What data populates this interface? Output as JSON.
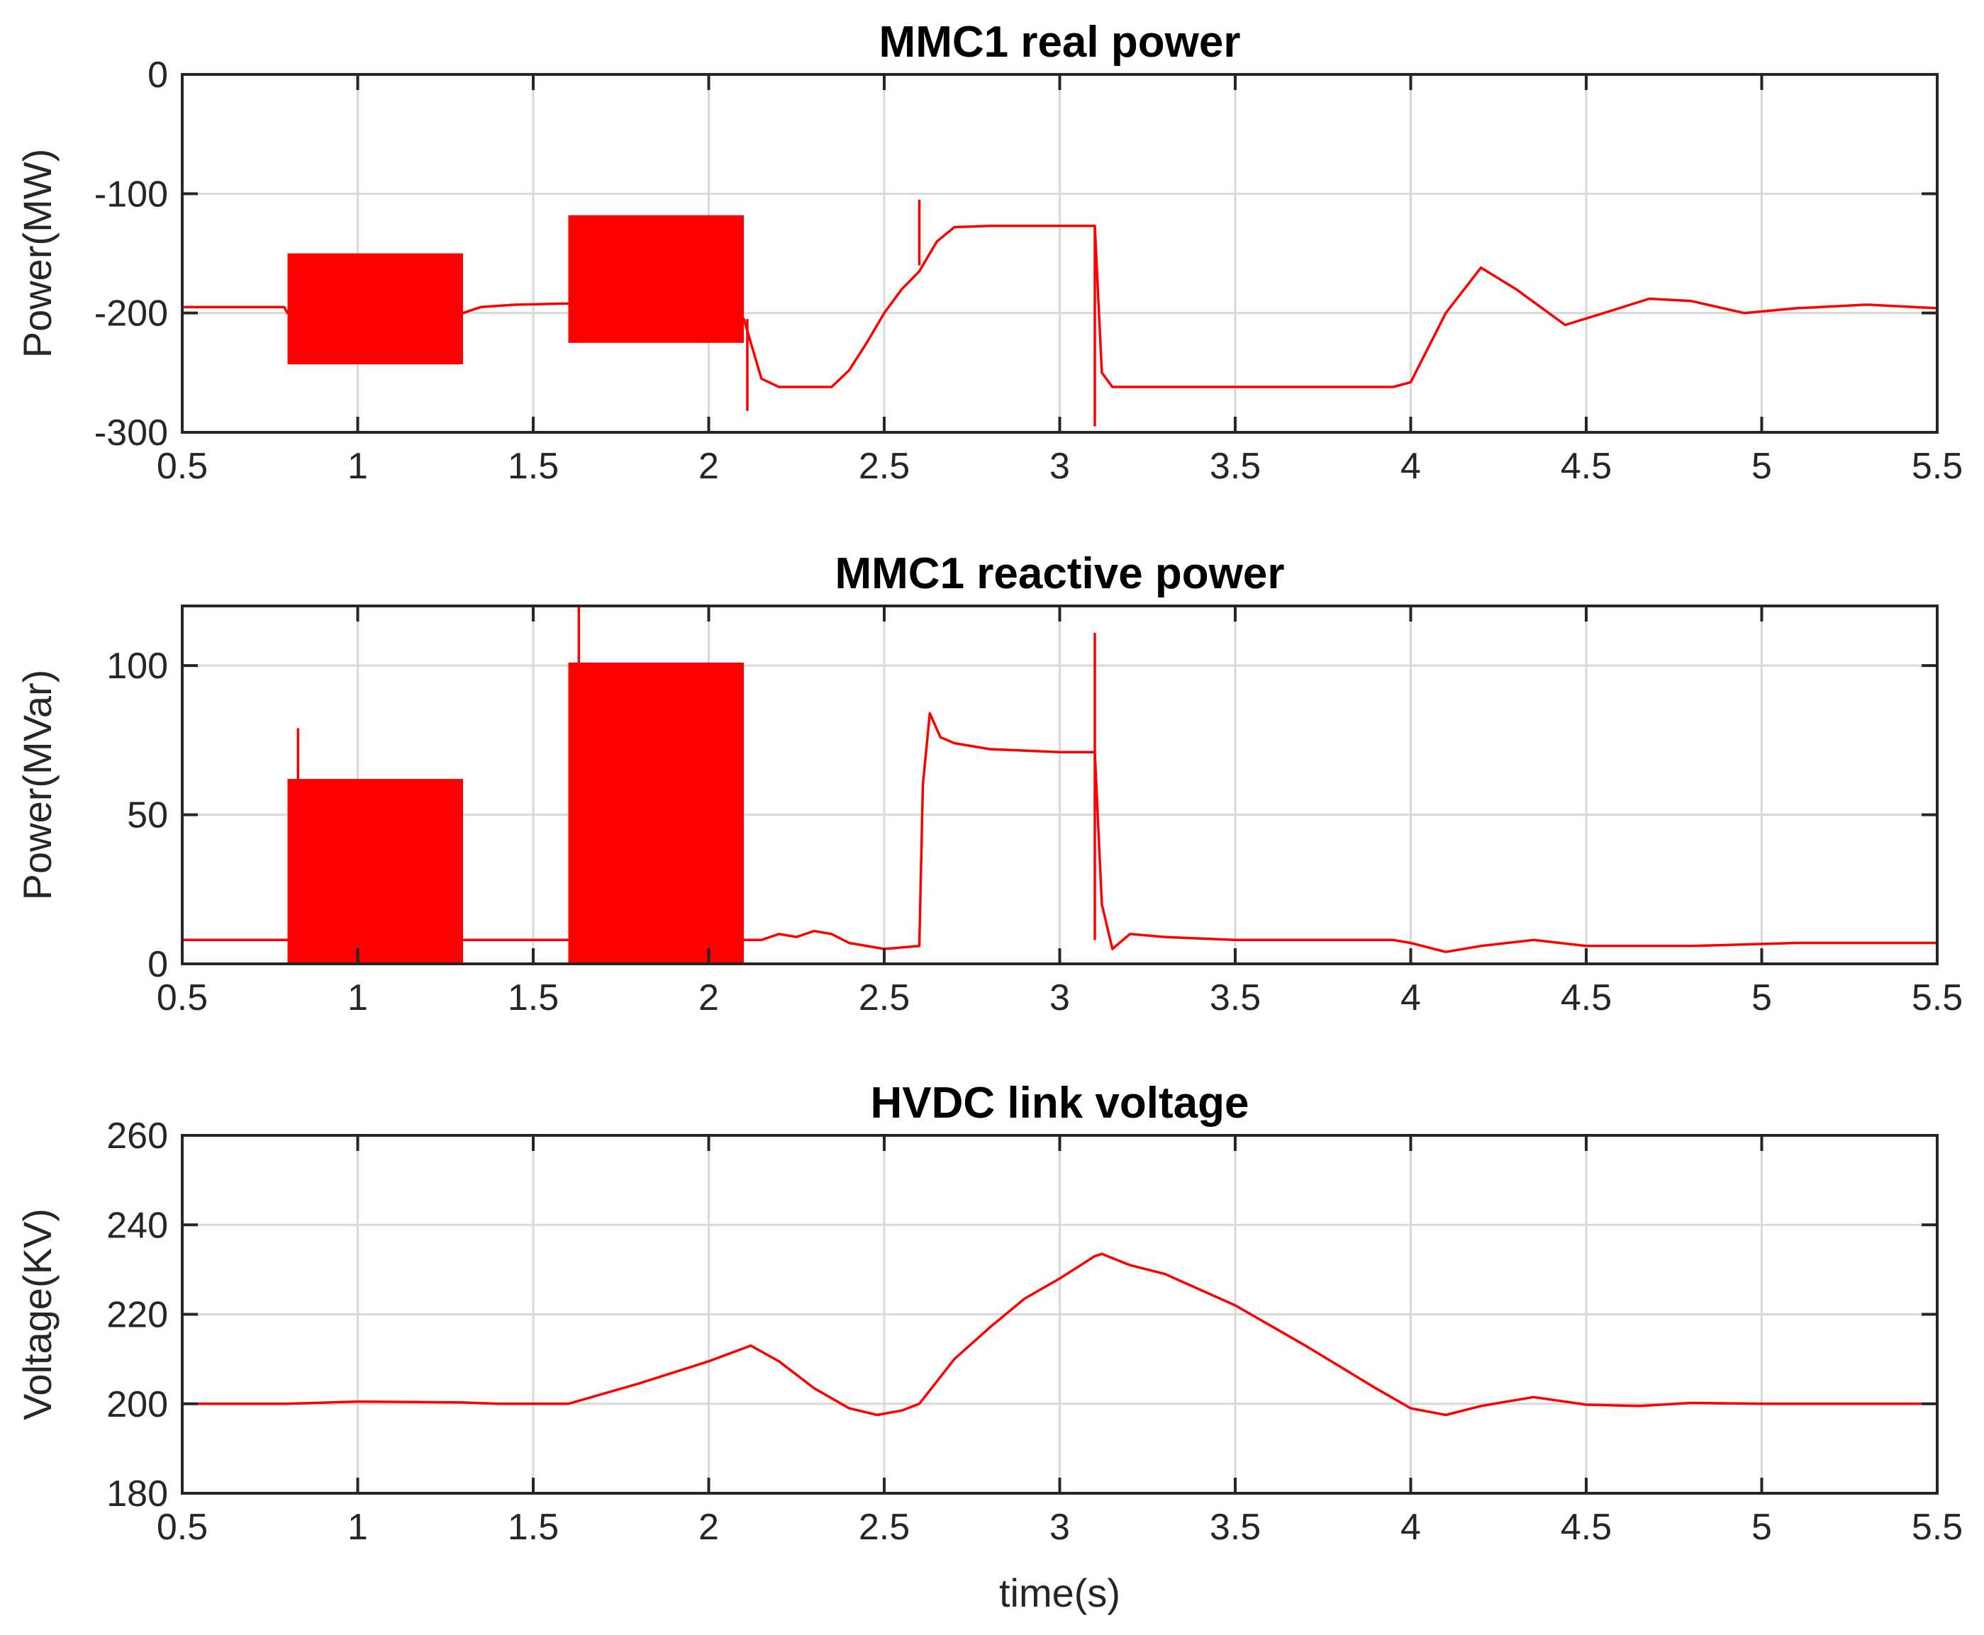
{
  "chart_data": [
    {
      "type": "line",
      "title": "MMC1 real power",
      "xlabel": "",
      "ylabel": "Power(MW)",
      "xlim": [
        0.5,
        5.5
      ],
      "ylim": [
        -300,
        0
      ],
      "xticks": [
        "0.5",
        "1",
        "1.5",
        "2",
        "2.5",
        "3",
        "3.5",
        "4",
        "4.5",
        "5",
        "5.5"
      ],
      "yticks": [
        "0",
        "-100",
        "-200",
        "-300"
      ],
      "grid": true,
      "series": [
        {
          "name": "MMC1 real power",
          "color": "#ff0000",
          "x": [
            0.5,
            0.79,
            0.8,
            1.3,
            1.35,
            1.45,
            1.6,
            2.08,
            2.1,
            2.15,
            2.2,
            2.35,
            2.4,
            2.45,
            2.5,
            2.55,
            2.6,
            2.65,
            2.7,
            2.8,
            2.9,
            3.0,
            3.1,
            3.12,
            3.15,
            3.2,
            3.5,
            3.8,
            3.95,
            4.0,
            4.1,
            4.2,
            4.3,
            4.44,
            4.55,
            4.68,
            4.8,
            4.95,
            5.1,
            5.3,
            5.5
          ],
          "y": [
            -195,
            -195,
            -200,
            -200,
            -195,
            -193,
            -192,
            -200,
            -205,
            -255,
            -262,
            -262,
            -248,
            -225,
            -200,
            -180,
            -165,
            -140,
            -128,
            -127,
            -127,
            -127,
            -127,
            -250,
            -262,
            -262,
            -262,
            -262,
            -262,
            -258,
            -200,
            -162,
            -180,
            -210,
            -200,
            -188,
            -190,
            -200,
            -196,
            -193,
            -196
          ]
        }
      ],
      "oscillation_bands": [
        {
          "x_start": 0.8,
          "x_end": 1.3,
          "y_min": -243,
          "y_max": -150
        },
        {
          "x_start": 1.6,
          "x_end": 2.1,
          "y_min": -225,
          "y_max": -118
        }
      ],
      "spikes": [
        {
          "x": 2.11,
          "y_min": -282,
          "y_max": -205
        },
        {
          "x": 2.6,
          "y_min": -160,
          "y_max": -105
        },
        {
          "x": 3.1,
          "y_min": -295,
          "y_max": -127
        }
      ]
    },
    {
      "type": "line",
      "title": "MMC1 reactive power",
      "xlabel": "",
      "ylabel": "Power(MVar)",
      "xlim": [
        0.5,
        5.5
      ],
      "ylim": [
        0,
        120
      ],
      "xticks": [
        "0.5",
        "1",
        "1.5",
        "2",
        "2.5",
        "3",
        "3.5",
        "4",
        "4.5",
        "5",
        "5.5"
      ],
      "yticks": [
        "0",
        "50",
        "100"
      ],
      "grid": true,
      "series": [
        {
          "name": "MMC1 reactive power",
          "color": "#ff0000",
          "x": [
            0.5,
            0.8,
            1.3,
            1.35,
            1.4,
            1.6,
            2.1,
            2.15,
            2.2,
            2.25,
            2.3,
            2.35,
            2.4,
            2.5,
            2.6,
            2.61,
            2.63,
            2.66,
            2.7,
            2.8,
            3.0,
            3.1,
            3.12,
            3.15,
            3.2,
            3.3,
            3.5,
            3.8,
            3.95,
            4.0,
            4.1,
            4.2,
            4.35,
            4.5,
            4.8,
            5.1,
            5.5
          ],
          "y": [
            8,
            8,
            8,
            8,
            8,
            8,
            8,
            8,
            10,
            9,
            11,
            10,
            7,
            5,
            6,
            60,
            84,
            76,
            74,
            72,
            71,
            71,
            20,
            5,
            10,
            9,
            8,
            8,
            8,
            7,
            4,
            6,
            8,
            6,
            6,
            7,
            7
          ]
        }
      ],
      "oscillation_bands": [
        {
          "x_start": 0.8,
          "x_end": 1.3,
          "y_min": 0,
          "y_max": 62
        },
        {
          "x_start": 1.6,
          "x_end": 2.1,
          "y_min": 0,
          "y_max": 101
        }
      ],
      "spikes": [
        {
          "x": 0.83,
          "y_min": 60,
          "y_max": 79
        },
        {
          "x": 1.63,
          "y_min": 95,
          "y_max": 120
        },
        {
          "x": 3.1,
          "y_min": 8,
          "y_max": 111
        }
      ]
    },
    {
      "type": "line",
      "title": "HVDC link voltage",
      "xlabel": "time(s)",
      "ylabel": "Voltage(KV)",
      "xlim": [
        0.5,
        5.5
      ],
      "ylim": [
        180,
        260
      ],
      "xticks": [
        "0.5",
        "1",
        "1.5",
        "2",
        "2.5",
        "3",
        "3.5",
        "4",
        "4.5",
        "5",
        "5.5"
      ],
      "yticks": [
        "180",
        "200",
        "220",
        "240",
        "260"
      ],
      "grid": true,
      "series": [
        {
          "name": "HVDC link voltage",
          "color": "#ff0000",
          "x": [
            0.5,
            0.8,
            1.0,
            1.3,
            1.4,
            1.6,
            1.8,
            2.0,
            2.12,
            2.2,
            2.3,
            2.4,
            2.48,
            2.55,
            2.6,
            2.7,
            2.8,
            2.9,
            3.0,
            3.1,
            3.12,
            3.2,
            3.3,
            3.5,
            3.7,
            3.9,
            4.0,
            4.1,
            4.2,
            4.35,
            4.5,
            4.65,
            4.8,
            5.0,
            5.5
          ],
          "y": [
            200,
            200,
            200.5,
            200.3,
            200,
            200,
            204.5,
            209.5,
            213,
            209.5,
            203.5,
            199,
            197.5,
            198.5,
            200,
            210,
            217,
            223.5,
            228,
            233,
            233.5,
            231,
            229,
            222,
            213,
            203.5,
            199,
            197.5,
            199.5,
            201.5,
            199.8,
            199.5,
            200.2,
            200,
            200
          ]
        }
      ],
      "oscillation_bands": [],
      "spikes": []
    }
  ]
}
